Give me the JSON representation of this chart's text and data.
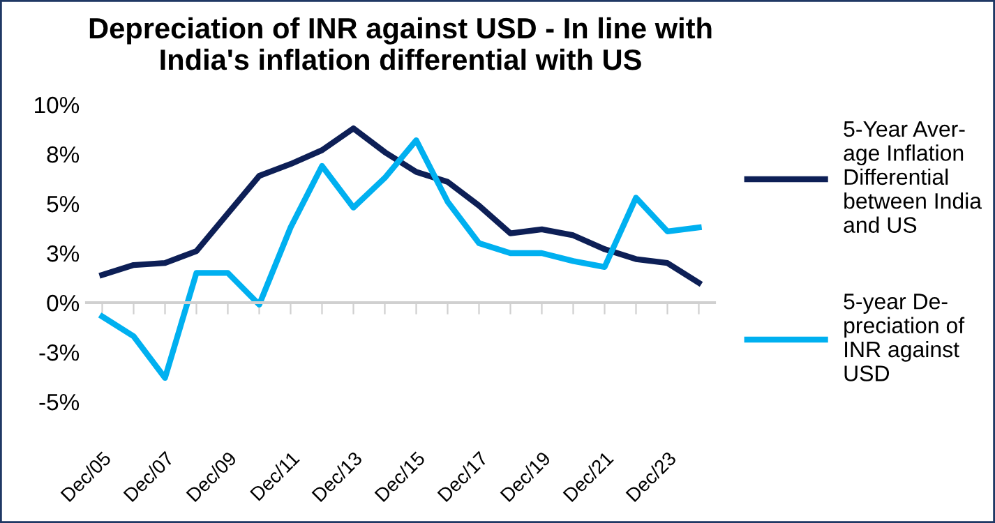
{
  "chart_data": {
    "type": "line",
    "title": "Depreciation of INR against USD - In line with\nIndia's inflation differential with US",
    "categories": [
      "Dec/05",
      null,
      "Dec/07",
      null,
      "Dec/09",
      null,
      "Dec/11",
      null,
      "Dec/13",
      null,
      "Dec/15",
      null,
      "Dec/17",
      null,
      "Dec/19",
      null,
      "Dec/21",
      null,
      "Dec/23",
      null
    ],
    "series": [
      {
        "name": "5-Year Aver-\nage Inflation\nDifferential\nbetween India\nand US",
        "color": "#0d1f56",
        "values": [
          1.4,
          1.9,
          2.0,
          2.6,
          4.5,
          6.4,
          7.0,
          7.7,
          8.8,
          7.6,
          6.6,
          6.1,
          4.9,
          3.5,
          3.7,
          3.4,
          2.7,
          2.2,
          2.0,
          1.0
        ]
      },
      {
        "name": "5-year De-\npreciation of\nINR against\nUSD",
        "color": "#00b0f0",
        "values": [
          -0.7,
          -1.7,
          -3.8,
          1.5,
          1.5,
          -0.1,
          3.8,
          6.9,
          4.8,
          6.3,
          8.2,
          5.1,
          3.0,
          2.5,
          2.5,
          2.1,
          1.8,
          5.3,
          3.6,
          3.8
        ]
      }
    ],
    "ylim": [
      -5,
      10
    ],
    "yticks": [
      {
        "value": -5,
        "label": "-5%"
      },
      {
        "value": -2.5,
        "label": "-3%"
      },
      {
        "value": 0,
        "label": "0%"
      },
      {
        "value": 2.5,
        "label": "3%"
      },
      {
        "value": 5,
        "label": "5%"
      },
      {
        "value": 7.5,
        "label": "8%"
      },
      {
        "value": 10,
        "label": "10%"
      }
    ],
    "legend": "right",
    "marker": "none",
    "line_style": "solid"
  }
}
